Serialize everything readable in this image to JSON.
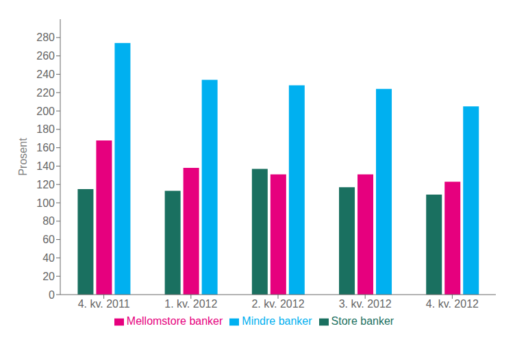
{
  "chart_data": {
    "type": "bar",
    "ylabel": "Prosent",
    "categories": [
      "4. kv. 2011",
      "1. kv. 2012",
      "2. kv. 2012",
      "3. kv. 2012",
      "4. kv. 2012"
    ],
    "series": [
      {
        "name": "Store banker",
        "color": "#1a7060",
        "values": [
          115,
          113,
          137,
          117,
          109
        ]
      },
      {
        "name": "Mellomstore banker",
        "color": "#e6007e",
        "values": [
          168,
          138,
          131,
          131,
          123
        ]
      },
      {
        "name": "Mindre banker",
        "color": "#00b0f0",
        "values": [
          274,
          234,
          228,
          224,
          205
        ]
      }
    ],
    "ylim": [
      0,
      300
    ],
    "yticks": [
      0,
      20,
      40,
      60,
      80,
      100,
      120,
      140,
      160,
      180,
      200,
      220,
      240,
      260,
      280
    ],
    "grid": false,
    "legend": "bottom"
  }
}
